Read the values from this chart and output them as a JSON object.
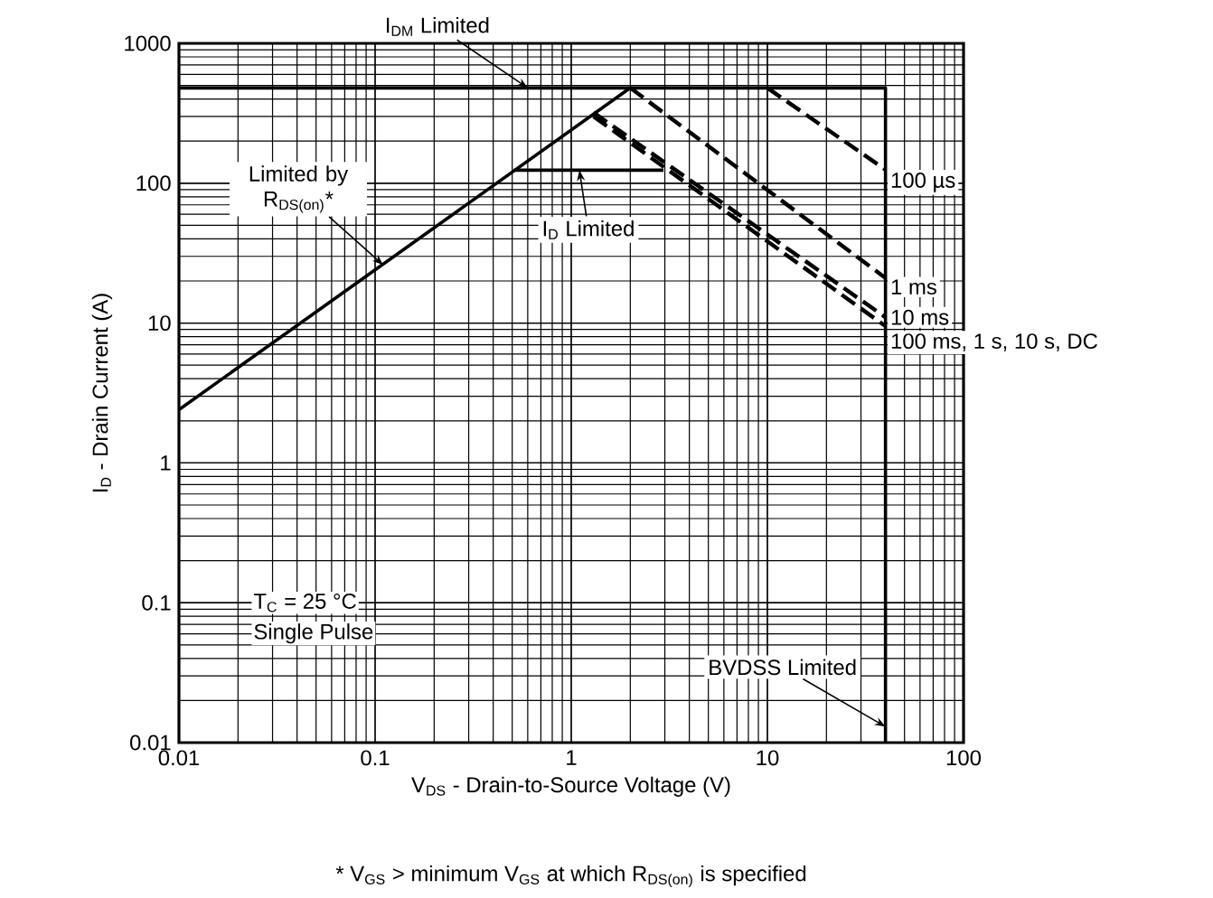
{
  "chart_data": {
    "type": "line",
    "log": "xy",
    "grid": true,
    "marker": "none",
    "xlabel": "V$_{DS}$ - Drain-to-Source Voltage (V)",
    "ylabel": "I$_{D}$ - Drain Current (A)",
    "xlim": [
      0.01,
      100
    ],
    "ylim": [
      0.01,
      1000
    ],
    "xticks": [
      0.01,
      0.1,
      1,
      10,
      100
    ],
    "yticks": [
      0.01,
      0.1,
      1,
      10,
      100,
      1000
    ],
    "series": [
      {
        "color": "#000000",
        "line_style": "solid",
        "x": [
          0.01,
          2
        ],
        "values": [
          2.4,
          480
        ]
      },
      {
        "color": "#000000",
        "line_style": "solid",
        "x": [
          0.01,
          40,
          40
        ],
        "values": [
          480,
          480,
          0.01
        ]
      },
      {
        "color": "#000000",
        "line_style": "solid",
        "x": [
          0.51,
          2.95
        ],
        "values": [
          124,
          124
        ]
      },
      {
        "name": "100 µs",
        "color": "#000000",
        "line_style": "dashed",
        "x": [
          10,
          40
        ],
        "values": [
          480,
          125
        ]
      },
      {
        "name": "1 ms",
        "color": "#000000",
        "line_style": "dashed",
        "x": [
          2,
          40
        ],
        "values": [
          480,
          21
        ]
      },
      {
        "name": "10 ms",
        "color": "#000000",
        "line_style": "dashed",
        "x": [
          1.3,
          40
        ],
        "values": [
          320,
          11
        ]
      },
      {
        "name": "100 ms, 1 s, 10 s, DC",
        "color": "#000000",
        "line_style": "dashed",
        "x": [
          1.3,
          40
        ],
        "values": [
          300,
          9.5
        ]
      }
    ],
    "annotations": [
      {
        "text": "I$_{DM}$ Limited",
        "x": 0.6,
        "y": 480
      },
      {
        "text": "Limited by R$_{DS(on)}$*",
        "x": 0.11,
        "y": 26
      },
      {
        "text": "I$_{D}$ Limited",
        "x": 1.1,
        "y": 124
      },
      {
        "text": "BVDSS Limited",
        "x": 40,
        "y": 0.013
      },
      "T$_{C}$ = 25 °C",
      "Single Pulse",
      "* V$_{GS}$ > minimum V$_{GS}$ at which R$_{DS(on)}$ is specified"
    ]
  }
}
